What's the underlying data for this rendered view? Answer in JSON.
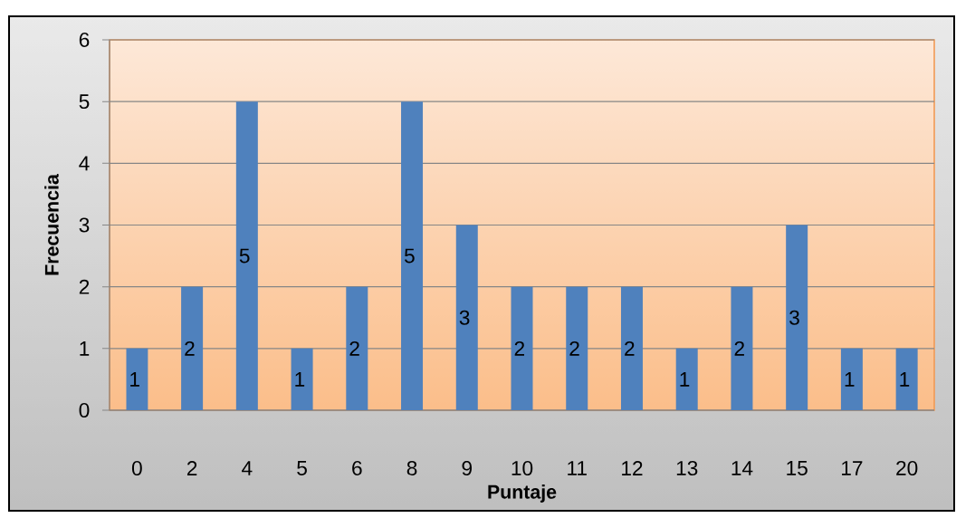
{
  "chart_data": {
    "type": "bar",
    "xlabel": "Puntaje",
    "ylabel": "Frecuencia",
    "categories": [
      "0",
      "2",
      "4",
      "5",
      "6",
      "8",
      "9",
      "10",
      "11",
      "12",
      "13",
      "14",
      "15",
      "17",
      "20"
    ],
    "values": [
      1,
      2,
      5,
      1,
      2,
      5,
      3,
      2,
      2,
      2,
      1,
      2,
      3,
      1,
      1
    ],
    "color": "#4f81bd",
    "ylim": [
      0,
      6
    ],
    "yticks": [
      0,
      1,
      2,
      3,
      4,
      5,
      6
    ],
    "grid": "y",
    "data_labels": true
  }
}
